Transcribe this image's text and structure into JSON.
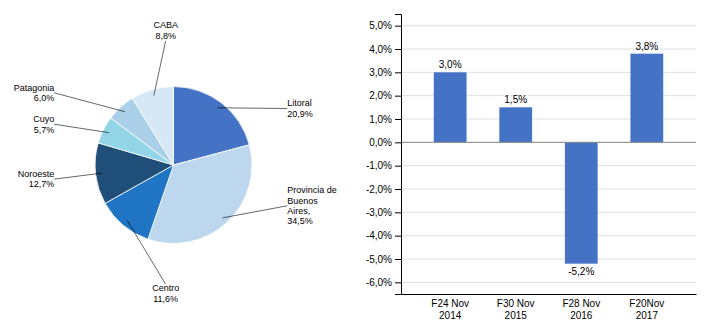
{
  "chart_data": [
    {
      "type": "pie",
      "categories": [
        "Litoral",
        "Provincia de\nBuenos\nAires,",
        "Centro",
        "Noroeste",
        "Cuyo",
        "Patagonia",
        "CABA"
      ],
      "values": [
        20.9,
        34.5,
        11.6,
        12.7,
        5.7,
        6.0,
        8.8
      ],
      "value_labels": [
        "20,9%",
        "34,5%",
        "11,6%",
        "12,7%",
        "5,7%",
        "6,0%",
        "8,8%"
      ],
      "colors": [
        "#4472C4",
        "#BDD7EE",
        "#1F75C4",
        "#1F4E79",
        "#92D5E6",
        "#A9D0E8",
        "#D6E8F5"
      ],
      "data_labels": true
    },
    {
      "type": "bar",
      "categories": [
        "F24 Nov\n2014",
        "F30 Nov\n2015",
        "F28 Nov\n2016",
        "F20Nov\n2017"
      ],
      "values": [
        3.0,
        1.5,
        -5.2,
        3.8
      ],
      "value_labels": [
        "3,0%",
        "1,5%",
        "-5,2%",
        "3,8%"
      ],
      "color": "#4472C4",
      "ylim": [
        -6.5,
        5.5
      ],
      "yticks": [
        {
          "value": -6.0,
          "label": "-6,0%"
        },
        {
          "value": -5.0,
          "label": "-5,0%"
        },
        {
          "value": -4.0,
          "label": "-4,0%"
        },
        {
          "value": -3.0,
          "label": "-3,0%"
        },
        {
          "value": -2.0,
          "label": "-2,0%"
        },
        {
          "value": -1.0,
          "label": "-1,0%"
        },
        {
          "value": 0.0,
          "label": "0,0%"
        },
        {
          "value": 1.0,
          "label": "1,0%"
        },
        {
          "value": 2.0,
          "label": "2,0%"
        },
        {
          "value": 3.0,
          "label": "3,0%"
        },
        {
          "value": 4.0,
          "label": "4,0%"
        },
        {
          "value": 5.0,
          "label": "5,0%"
        }
      ],
      "grid": true,
      "data_labels": true
    }
  ]
}
